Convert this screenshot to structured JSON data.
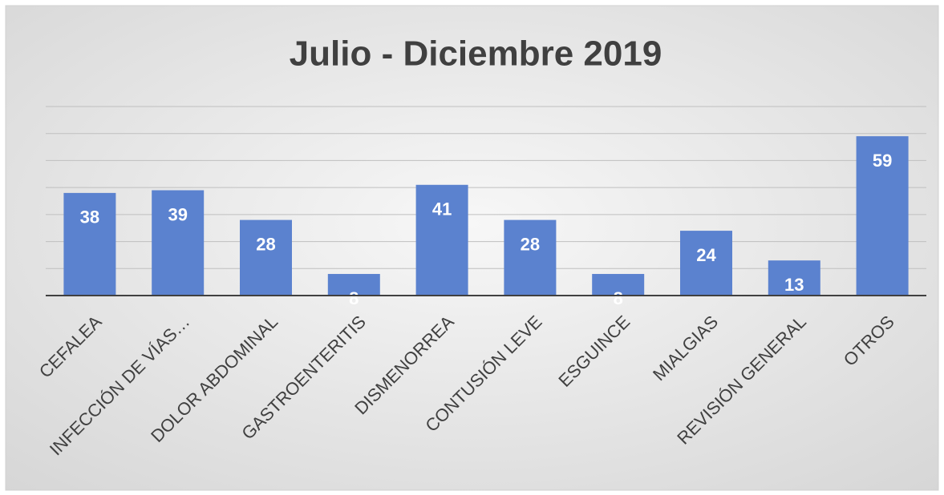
{
  "chart_data": {
    "type": "bar",
    "title": "Julio - Diciembre 2019",
    "categories": [
      "CEFALEA",
      "INFECCIÓN DE VÍAS…",
      "DOLOR ABDOMINAL",
      "GASTROENTERITIS",
      "DISMENORREA",
      "CONTUSIÓN LEVE",
      "ESGUINCE",
      "MIALGIAS",
      "REVISIÓN GENERAL",
      "OTROS"
    ],
    "values": [
      38,
      39,
      28,
      8,
      41,
      28,
      8,
      24,
      13,
      59
    ],
    "color": "#5b82cf",
    "ylim": [
      0,
      70
    ],
    "yticks": [
      0,
      10,
      20,
      30,
      40,
      50,
      60,
      70
    ],
    "grid": true
  }
}
